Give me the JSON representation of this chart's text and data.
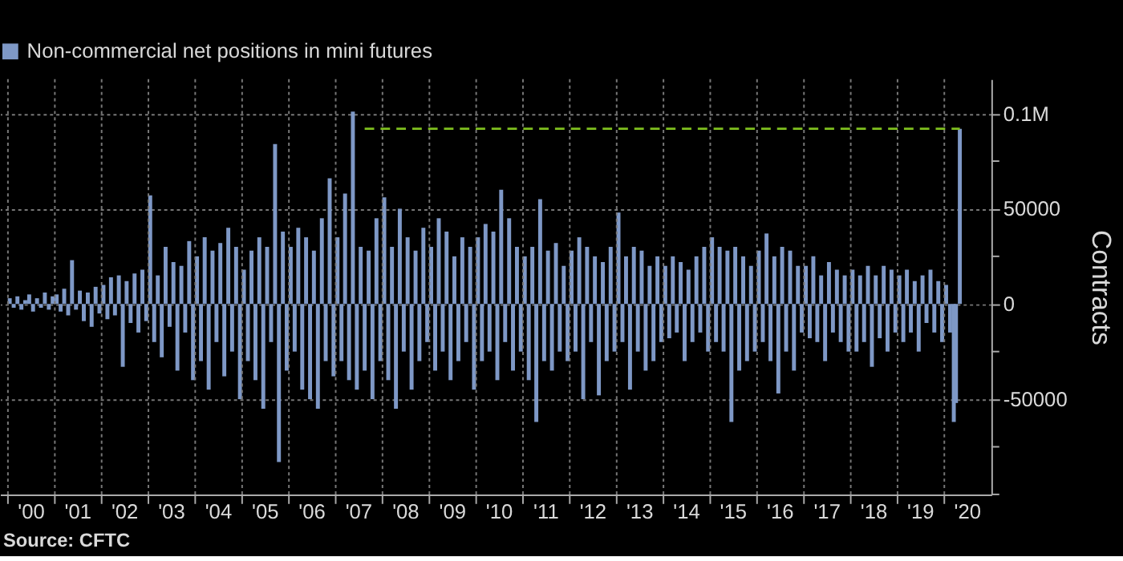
{
  "chart_data": {
    "type": "bar",
    "ylabel": "Contracts",
    "annotations": [
      "Source: CFTC"
    ],
    "xlim": [
      "2000-01-01",
      "2020-11-01"
    ],
    "xticks": [
      {
        "value": "2000-01-01",
        "label": null
      },
      {
        "value": "2000-07-01",
        "label": "'00"
      },
      {
        "value": "2001-01-01",
        "label": null
      },
      {
        "value": "2001-07-01",
        "label": "'01"
      },
      {
        "value": "2002-01-01",
        "label": null
      },
      {
        "value": "2002-07-01",
        "label": "'02"
      },
      {
        "value": "2003-01-01",
        "label": null
      },
      {
        "value": "2003-07-01",
        "label": "'03"
      },
      {
        "value": "2004-01-01",
        "label": null
      },
      {
        "value": "2004-07-01",
        "label": "'04"
      },
      {
        "value": "2005-01-01",
        "label": null
      },
      {
        "value": "2005-07-01",
        "label": "'05"
      },
      {
        "value": "2006-01-01",
        "label": null
      },
      {
        "value": "2006-07-01",
        "label": "'06"
      },
      {
        "value": "2007-01-01",
        "label": null
      },
      {
        "value": "2007-07-01",
        "label": "'07"
      },
      {
        "value": "2008-01-01",
        "label": null
      },
      {
        "value": "2008-07-01",
        "label": "'08"
      },
      {
        "value": "2009-01-01",
        "label": null
      },
      {
        "value": "2009-07-01",
        "label": "'09"
      },
      {
        "value": "2010-01-01",
        "label": null
      },
      {
        "value": "2010-07-01",
        "label": "'10"
      },
      {
        "value": "2011-01-01",
        "label": null
      },
      {
        "value": "2011-07-01",
        "label": "'11"
      },
      {
        "value": "2012-01-01",
        "label": null
      },
      {
        "value": "2012-07-01",
        "label": "'12"
      },
      {
        "value": "2013-01-01",
        "label": null
      },
      {
        "value": "2013-07-01",
        "label": "'13"
      },
      {
        "value": "2014-01-01",
        "label": null
      },
      {
        "value": "2014-07-01",
        "label": "'14"
      },
      {
        "value": "2015-01-01",
        "label": null
      },
      {
        "value": "2015-07-01",
        "label": "'15"
      },
      {
        "value": "2016-01-01",
        "label": null
      },
      {
        "value": "2016-07-01",
        "label": "'16"
      },
      {
        "value": "2017-01-01",
        "label": null
      },
      {
        "value": "2017-07-01",
        "label": "'17"
      },
      {
        "value": "2018-01-01",
        "label": null
      },
      {
        "value": "2018-07-01",
        "label": "'18"
      },
      {
        "value": "2019-01-01",
        "label": null
      },
      {
        "value": "2019-07-01",
        "label": "'19"
      },
      {
        "value": "2020-01-01",
        "label": null
      },
      {
        "value": "2020-07-01",
        "label": "'20"
      }
    ],
    "ylim": [
      -100000,
      118000
    ],
    "yticks": [
      {
        "value": -100000,
        "label": null
      },
      {
        "value": -75000,
        "label": null
      },
      {
        "value": -50000,
        "label": "-50000"
      },
      {
        "value": -25000,
        "label": null
      },
      {
        "value": 0,
        "label": "0"
      },
      {
        "value": 25000,
        "label": null
      },
      {
        "value": 50000,
        "label": "50000"
      },
      {
        "value": 75000,
        "label": null
      },
      {
        "value": 100000,
        "label": "0.1M"
      }
    ],
    "grid": true,
    "legend": "top left",
    "series": [
      {
        "name": "Non-commercial net positions in mini futures",
        "color": "#7e98c6",
        "x": [
          "2000-01-15",
          "2000-02-15",
          "2000-03-15",
          "2000-04-15",
          "2000-05-15",
          "2000-06-15",
          "2000-07-15",
          "2000-08-15",
          "2000-09-15",
          "2000-10-15",
          "2000-11-15",
          "2000-12-15",
          "2001-01-15",
          "2001-02-15",
          "2001-03-15",
          "2001-04-15",
          "2001-05-15",
          "2001-06-15",
          "2001-07-15",
          "2001-08-15",
          "2001-09-15",
          "2001-10-15",
          "2001-11-15",
          "2001-12-15",
          "2002-01-15",
          "2002-02-15",
          "2002-03-15",
          "2002-04-15",
          "2002-05-15",
          "2002-06-15",
          "2002-07-15",
          "2002-08-15",
          "2002-09-15",
          "2002-10-15",
          "2002-11-15",
          "2002-12-15",
          "2003-01-15",
          "2003-02-15",
          "2003-03-15",
          "2003-04-15",
          "2003-05-15",
          "2003-06-15",
          "2003-07-15",
          "2003-08-15",
          "2003-09-15",
          "2003-10-15",
          "2003-11-15",
          "2003-12-15",
          "2004-01-15",
          "2004-02-15",
          "2004-03-15",
          "2004-04-15",
          "2004-05-15",
          "2004-06-15",
          "2004-07-15",
          "2004-08-15",
          "2004-09-15",
          "2004-10-15",
          "2004-11-15",
          "2004-12-15",
          "2005-01-15",
          "2005-02-15",
          "2005-03-15",
          "2005-04-15",
          "2005-05-15",
          "2005-06-15",
          "2005-07-15",
          "2005-08-15",
          "2005-09-15",
          "2005-10-15",
          "2005-11-15",
          "2005-12-15",
          "2006-01-15",
          "2006-02-15",
          "2006-03-15",
          "2006-04-15",
          "2006-05-15",
          "2006-06-15",
          "2006-07-15",
          "2006-08-15",
          "2006-09-15",
          "2006-10-15",
          "2006-11-15",
          "2006-12-15",
          "2007-01-15",
          "2007-02-15",
          "2007-03-15",
          "2007-04-15",
          "2007-05-15",
          "2007-06-15",
          "2007-07-15",
          "2007-08-15",
          "2007-09-15",
          "2007-10-15",
          "2007-11-15",
          "2007-12-15",
          "2008-01-15",
          "2008-02-15",
          "2008-03-15",
          "2008-04-15",
          "2008-05-15",
          "2008-06-15",
          "2008-07-15",
          "2008-08-15",
          "2008-09-15",
          "2008-10-15",
          "2008-11-15",
          "2008-12-15",
          "2009-01-15",
          "2009-02-15",
          "2009-03-15",
          "2009-04-15",
          "2009-05-15",
          "2009-06-15",
          "2009-07-15",
          "2009-08-15",
          "2009-09-15",
          "2009-10-15",
          "2009-11-15",
          "2009-12-15",
          "2010-01-15",
          "2010-02-15",
          "2010-03-15",
          "2010-04-15",
          "2010-05-15",
          "2010-06-15",
          "2010-07-15",
          "2010-08-15",
          "2010-09-15",
          "2010-10-15",
          "2010-11-15",
          "2010-12-15",
          "2011-01-15",
          "2011-02-15",
          "2011-03-15",
          "2011-04-15",
          "2011-05-15",
          "2011-06-15",
          "2011-07-15",
          "2011-08-15",
          "2011-09-15",
          "2011-10-15",
          "2011-11-15",
          "2011-12-15",
          "2012-01-15",
          "2012-02-15",
          "2012-03-15",
          "2012-04-15",
          "2012-05-15",
          "2012-06-15",
          "2012-07-15",
          "2012-08-15",
          "2012-09-15",
          "2012-10-15",
          "2012-11-15",
          "2012-12-15",
          "2013-01-15",
          "2013-02-15",
          "2013-03-15",
          "2013-04-15",
          "2013-05-15",
          "2013-06-15",
          "2013-07-15",
          "2013-08-15",
          "2013-09-15",
          "2013-10-15",
          "2013-11-15",
          "2013-12-15",
          "2014-01-15",
          "2014-02-15",
          "2014-03-15",
          "2014-04-15",
          "2014-05-15",
          "2014-06-15",
          "2014-07-15",
          "2014-08-15",
          "2014-09-15",
          "2014-10-15",
          "2014-11-15",
          "2014-12-15",
          "2015-01-15",
          "2015-02-15",
          "2015-03-15",
          "2015-04-15",
          "2015-05-15",
          "2015-06-15",
          "2015-07-15",
          "2015-08-15",
          "2015-09-15",
          "2015-10-15",
          "2015-11-15",
          "2015-12-15",
          "2016-01-15",
          "2016-02-15",
          "2016-03-15",
          "2016-04-15",
          "2016-05-15",
          "2016-06-15",
          "2016-07-15",
          "2016-08-15",
          "2016-09-15",
          "2016-10-15",
          "2016-11-15",
          "2016-12-15",
          "2017-01-15",
          "2017-02-15",
          "2017-03-15",
          "2017-04-15",
          "2017-05-15",
          "2017-06-15",
          "2017-07-15",
          "2017-08-15",
          "2017-09-15",
          "2017-10-15",
          "2017-11-15",
          "2017-12-15",
          "2018-01-15",
          "2018-02-15",
          "2018-03-15",
          "2018-04-15",
          "2018-05-15",
          "2018-06-15",
          "2018-07-15",
          "2018-08-15",
          "2018-09-15",
          "2018-10-15",
          "2018-11-15",
          "2018-12-15",
          "2019-01-15",
          "2019-02-15",
          "2019-03-15",
          "2019-04-15",
          "2019-05-15",
          "2019-06-15",
          "2019-07-15",
          "2019-08-15",
          "2019-09-15",
          "2019-10-15",
          "2019-11-15",
          "2019-12-15",
          "2020-01-15",
          "2020-02-15",
          "2020-03-15",
          "2020-04-01",
          "2020-05-01"
        ],
        "values": [
          3000,
          -2000,
          4000,
          -3000,
          2000,
          5000,
          -4000,
          3000,
          -2000,
          6000,
          -3000,
          4000,
          5000,
          -4000,
          8000,
          -6000,
          23000,
          -3000,
          7000,
          -9000,
          6000,
          -12000,
          9000,
          -5000,
          10000,
          -8000,
          14000,
          -6000,
          15000,
          -33000,
          12000,
          -10000,
          16000,
          -15000,
          18000,
          -9000,
          57000,
          -20000,
          15000,
          -28000,
          30000,
          -12000,
          22000,
          -35000,
          20000,
          -15000,
          33000,
          -40000,
          25000,
          -30000,
          35000,
          -45000,
          28000,
          -20000,
          32000,
          -38000,
          40000,
          -25000,
          30000,
          -50000,
          18000,
          -30000,
          28000,
          -40000,
          35000,
          -55000,
          30000,
          -20000,
          84000,
          -83000,
          38000,
          -35000,
          30000,
          -25000,
          40000,
          -45000,
          35000,
          -50000,
          28000,
          -55000,
          45000,
          -30000,
          66000,
          -38000,
          35000,
          -30000,
          58000,
          -40000,
          101000,
          -45000,
          30000,
          -35000,
          28000,
          -50000,
          45000,
          -30000,
          56000,
          -40000,
          30000,
          -55000,
          50000,
          -25000,
          35000,
          -45000,
          28000,
          -30000,
          40000,
          -20000,
          30000,
          -35000,
          45000,
          -25000,
          38000,
          -40000,
          25000,
          -30000,
          35000,
          -20000,
          30000,
          -45000,
          35000,
          -30000,
          42000,
          -25000,
          38000,
          -40000,
          60000,
          -20000,
          45000,
          -35000,
          30000,
          -25000,
          25000,
          -40000,
          30000,
          -62000,
          55000,
          -30000,
          28000,
          -35000,
          32000,
          -25000,
          20000,
          -30000,
          28000,
          -25000,
          35000,
          -50000,
          30000,
          -20000,
          25000,
          -48000,
          22000,
          -30000,
          30000,
          -25000,
          48000,
          -20000,
          25000,
          -45000,
          30000,
          -25000,
          28000,
          -35000,
          20000,
          -30000,
          25000,
          -20000,
          20000,
          -18000,
          25000,
          -15000,
          22000,
          -30000,
          18000,
          -20000,
          25000,
          -15000,
          30000,
          -25000,
          35000,
          -20000,
          30000,
          -25000,
          28000,
          -62000,
          30000,
          -35000,
          25000,
          -30000,
          20000,
          -25000,
          28000,
          -20000,
          37000,
          -30000,
          25000,
          -47000,
          30000,
          -25000,
          28000,
          -35000,
          20000,
          -15000,
          20000,
          -18000,
          25000,
          -20000,
          15000,
          -30000,
          22000,
          -15000,
          18000,
          -20000,
          15000,
          -25000,
          18000,
          -25000,
          15000,
          -20000,
          20000,
          -33000,
          15000,
          -18000,
          20000,
          -25000,
          18000,
          -15000,
          15000,
          -20000,
          18000,
          -15000,
          12000,
          -25000,
          15000,
          -10000,
          18000,
          -15000,
          12000,
          -20000,
          10000,
          -15000,
          -62000,
          -52000,
          92000
        ]
      },
      {
        "type": "line",
        "color": "#7fbf1f",
        "line_style": "dashed",
        "x": [
          "2007-08-15",
          "2020-05-01"
        ],
        "values": [
          92000,
          92000
        ]
      }
    ]
  }
}
